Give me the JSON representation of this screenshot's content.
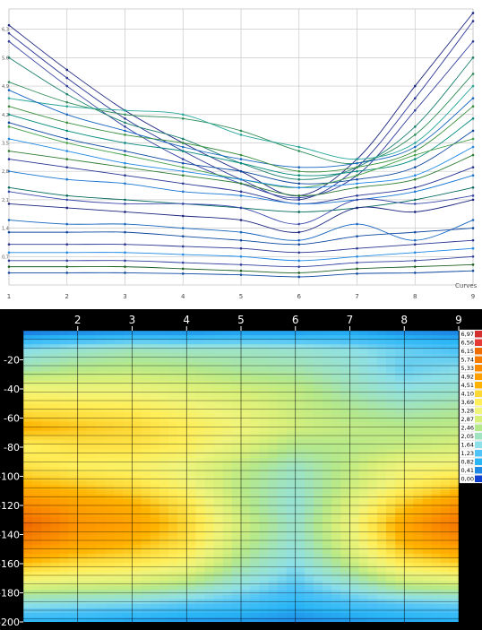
{
  "curves_chart": {
    "type": "line",
    "legend_label": "Curves",
    "x_ticks": [
      "1",
      "2",
      "3",
      "4",
      "5",
      "6",
      "7",
      "8",
      "9"
    ],
    "y_ticks": [
      "0,7",
      "1,4",
      "2,1",
      "2,8",
      "3,5",
      "4,2",
      "4,9",
      "5,6",
      "6,3"
    ],
    "ylim": [
      0.0,
      6.8
    ],
    "grid": true
  },
  "chart_data": [
    {
      "type": "line",
      "x": [
        1,
        2,
        3,
        4,
        5,
        6,
        7,
        8,
        9
      ],
      "series": [
        {
          "color": "#1a237e",
          "values": [
            6.4,
            5.3,
            4.3,
            3.5,
            2.8,
            2.2,
            3.1,
            4.9,
            6.7
          ]
        },
        {
          "color": "#283593",
          "values": [
            6.2,
            5.1,
            4.1,
            3.3,
            2.6,
            2.1,
            2.9,
            4.6,
            6.5
          ]
        },
        {
          "color": "#303f9f",
          "values": [
            6.0,
            4.9,
            3.9,
            3.1,
            2.5,
            2.15,
            2.7,
            4.3,
            6.0
          ]
        },
        {
          "color": "#1b7f6e",
          "values": [
            5.6,
            4.7,
            4.0,
            3.6,
            3.0,
            2.6,
            2.9,
            3.9,
            5.6
          ]
        },
        {
          "color": "#2e8b57",
          "values": [
            5.0,
            4.5,
            4.2,
            4.1,
            3.8,
            3.3,
            3.0,
            3.7,
            5.2
          ]
        },
        {
          "color": "#26a69a",
          "values": [
            4.6,
            4.4,
            4.3,
            4.2,
            3.7,
            3.4,
            3.1,
            3.5,
            4.9
          ]
        },
        {
          "color": "#1565c0",
          "values": [
            4.8,
            4.2,
            3.8,
            3.4,
            3.1,
            2.9,
            3.0,
            3.4,
            4.6
          ]
        },
        {
          "color": "#388e3c",
          "values": [
            4.4,
            4.0,
            3.7,
            3.5,
            3.2,
            2.8,
            2.9,
            3.3,
            4.4
          ]
        },
        {
          "color": "#00897b",
          "values": [
            4.2,
            3.8,
            3.5,
            3.3,
            3.0,
            2.7,
            2.8,
            3.1,
            4.1
          ]
        },
        {
          "color": "#0d47a1",
          "values": [
            4.0,
            3.6,
            3.3,
            3.0,
            2.8,
            2.5,
            2.6,
            2.9,
            3.8
          ]
        },
        {
          "color": "#43a047",
          "values": [
            3.9,
            3.5,
            3.2,
            2.9,
            2.6,
            2.4,
            2.7,
            3.2,
            3.6
          ]
        },
        {
          "color": "#1e88e5",
          "values": [
            3.6,
            3.3,
            3.0,
            2.8,
            2.6,
            2.4,
            2.5,
            2.7,
            3.4
          ]
        },
        {
          "color": "#2e7d32",
          "values": [
            3.3,
            3.1,
            2.9,
            2.7,
            2.5,
            2.2,
            2.4,
            2.6,
            3.2
          ]
        },
        {
          "color": "#283593",
          "values": [
            3.1,
            2.9,
            2.7,
            2.5,
            2.3,
            2.0,
            2.2,
            2.4,
            2.9
          ]
        },
        {
          "color": "#1976d2",
          "values": [
            2.8,
            2.6,
            2.5,
            2.3,
            2.2,
            2.0,
            2.1,
            2.3,
            2.7
          ]
        },
        {
          "color": "#00695c",
          "values": [
            2.4,
            2.2,
            2.1,
            2.0,
            1.9,
            1.8,
            1.9,
            2.1,
            2.4
          ]
        },
        {
          "color": "#3949ab",
          "values": [
            2.3,
            2.1,
            2.0,
            2.0,
            1.9,
            1.5,
            2.1,
            2.0,
            2.2
          ]
        },
        {
          "color": "#1a237e",
          "values": [
            2.0,
            1.9,
            1.8,
            1.7,
            1.6,
            1.3,
            1.9,
            1.8,
            2.1
          ]
        },
        {
          "color": "#1565c0",
          "values": [
            1.6,
            1.5,
            1.5,
            1.4,
            1.3,
            1.1,
            1.5,
            1.1,
            1.6
          ]
        },
        {
          "color": "#0d47a1",
          "values": [
            1.3,
            1.3,
            1.3,
            1.2,
            1.1,
            1.0,
            1.2,
            1.3,
            1.4
          ]
        },
        {
          "color": "#283593",
          "values": [
            1.0,
            1.0,
            1.0,
            0.95,
            0.9,
            0.8,
            0.9,
            1.0,
            1.1
          ]
        },
        {
          "color": "#1e88e5",
          "values": [
            0.8,
            0.8,
            0.8,
            0.75,
            0.7,
            0.6,
            0.7,
            0.8,
            0.9
          ]
        },
        {
          "color": "#303f9f",
          "values": [
            0.6,
            0.6,
            0.6,
            0.55,
            0.5,
            0.45,
            0.55,
            0.6,
            0.7
          ]
        },
        {
          "color": "#1b5e20",
          "values": [
            0.45,
            0.45,
            0.45,
            0.4,
            0.35,
            0.3,
            0.4,
            0.45,
            0.5
          ]
        },
        {
          "color": "#0d47a1",
          "values": [
            0.3,
            0.3,
            0.3,
            0.28,
            0.25,
            0.2,
            0.28,
            0.3,
            0.35
          ]
        }
      ]
    },
    {
      "type": "heatmap",
      "x_ticks": [
        "2",
        "3",
        "4",
        "5",
        "6",
        "7",
        "8",
        "9"
      ],
      "x_range": [
        1,
        9
      ],
      "y_ticks": [
        "-20",
        "-40",
        "-60",
        "-80",
        "-100",
        "-120",
        "-140",
        "-160",
        "-180",
        "-200"
      ],
      "y_range": [
        0,
        -200
      ],
      "scale_labels": [
        "6,97",
        "6,56",
        "6,15",
        "5,74",
        "5,33",
        "4,92",
        "4,51",
        "4,10",
        "3,69",
        "3,28",
        "2,87",
        "2,46",
        "2,05",
        "1,64",
        "1,23",
        "0,82",
        "0,41",
        "0,00"
      ],
      "scale_colors": [
        "#d32f2f",
        "#e53935",
        "#ef6c00",
        "#f57c00",
        "#fb8c00",
        "#ffa000",
        "#ffb300",
        "#fdd835",
        "#ffee58",
        "#f0f47a",
        "#d8f07a",
        "#b5e88a",
        "#9fe3c0",
        "#8de0e8",
        "#4fc3f7",
        "#29b6f6",
        "#1e88e5",
        "#1040d0"
      ],
      "columns": [
        {
          "x": 1,
          "values": [
            0.2,
            1.6,
            2.2,
            3.3,
            3.9,
            4.6,
            3.6,
            3.9,
            4.6,
            5.4,
            6.3,
            5.5,
            4.4,
            3.2,
            1.8,
            0.8
          ]
        },
        {
          "x": 2,
          "values": [
            0.3,
            1.9,
            2.5,
            3.2,
            3.8,
            4.3,
            3.9,
            3.6,
            4.3,
            4.9,
            5.2,
            4.8,
            4.0,
            3.0,
            1.7,
            0.7
          ]
        },
        {
          "x": 3,
          "values": [
            0.4,
            2.1,
            2.6,
            3.2,
            3.7,
            4.1,
            3.9,
            3.5,
            4.0,
            4.6,
            4.9,
            4.5,
            3.8,
            2.9,
            1.6,
            0.6
          ]
        },
        {
          "x": 4,
          "values": [
            0.4,
            2.0,
            2.5,
            3.0,
            3.4,
            3.7,
            3.6,
            3.2,
            3.4,
            3.9,
            4.1,
            3.9,
            3.4,
            2.5,
            1.4,
            0.5
          ]
        },
        {
          "x": 5,
          "values": [
            0.5,
            2.0,
            2.3,
            2.8,
            3.1,
            3.3,
            3.0,
            2.6,
            2.5,
            2.6,
            2.8,
            2.6,
            2.3,
            1.8,
            1.2,
            0.5
          ]
        },
        {
          "x": 6,
          "values": [
            0.5,
            1.9,
            2.2,
            2.6,
            2.7,
            2.8,
            2.4,
            2.0,
            1.9,
            1.8,
            1.9,
            1.8,
            1.6,
            1.3,
            0.9,
            0.4
          ]
        },
        {
          "x": 7,
          "values": [
            0.6,
            1.7,
            1.9,
            2.1,
            2.4,
            2.6,
            2.5,
            2.6,
            2.7,
            3.0,
            3.2,
            3.0,
            2.6,
            1.9,
            1.2,
            0.5
          ]
        },
        {
          "x": 8,
          "values": [
            0.4,
            1.4,
            1.4,
            1.7,
            2.1,
            2.5,
            2.7,
            3.3,
            3.6,
            4.3,
            4.8,
            4.5,
            3.8,
            2.7,
            1.4,
            0.6
          ]
        },
        {
          "x": 9,
          "values": [
            0.3,
            1.2,
            1.6,
            1.9,
            2.3,
            2.6,
            2.9,
            3.4,
            4.2,
            5.2,
            5.9,
            5.1,
            4.2,
            2.9,
            1.5,
            0.7
          ]
        }
      ]
    }
  ]
}
